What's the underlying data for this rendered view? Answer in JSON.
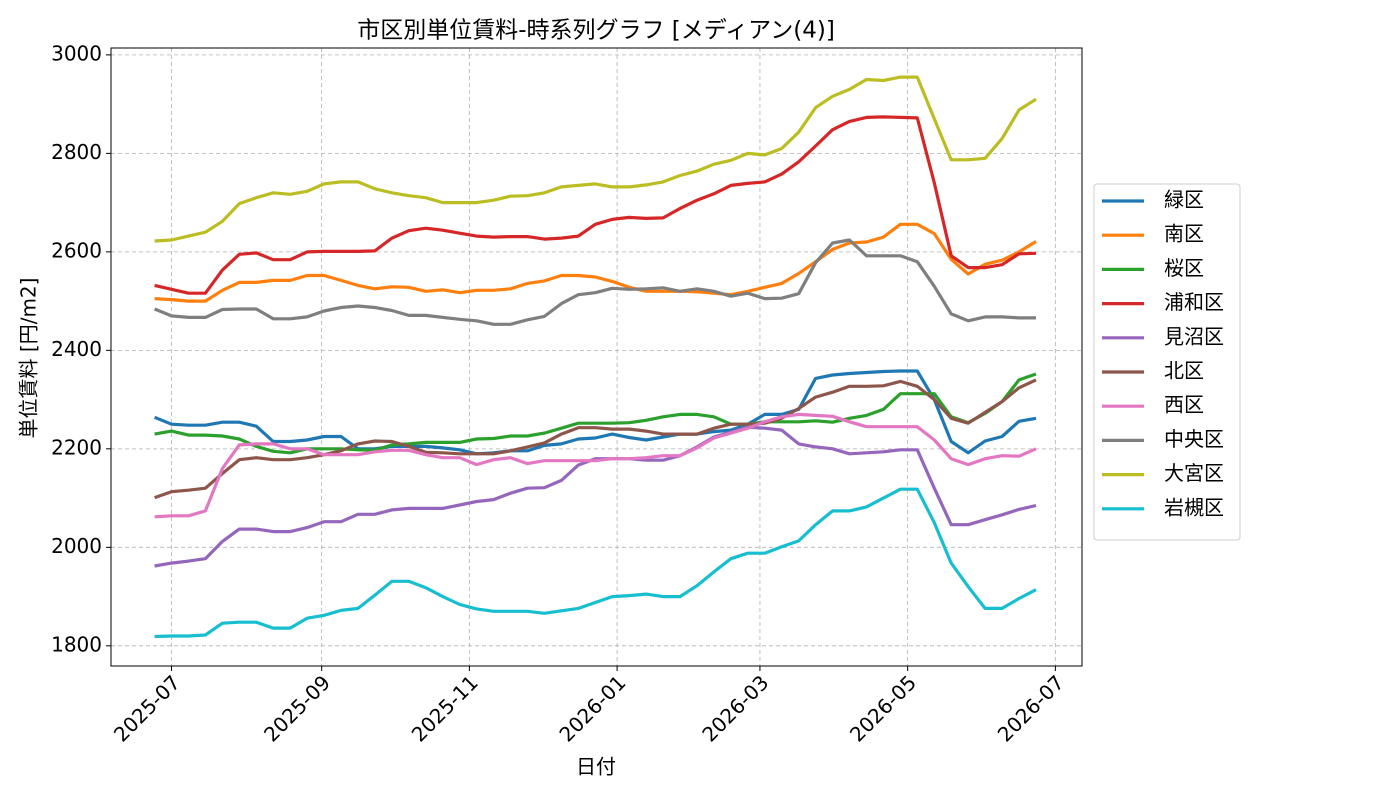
{
  "chart_data": {
    "type": "line",
    "title": "市区別単位賃料-時系列グラフ [メディアン(4)]",
    "x_label": "日付",
    "y_label": "単位賃料 [円/m2]",
    "x": [
      20263,
      20270,
      20277,
      20284,
      20291,
      20298,
      20305,
      20312,
      20319,
      20326,
      20333,
      20340,
      20347,
      20354,
      20361,
      20368,
      20375,
      20382,
      20389,
      20396,
      20403,
      20410,
      20417,
      20424,
      20431,
      20438,
      20445,
      20452,
      20459,
      20466,
      20473,
      20480,
      20487,
      20494,
      20501,
      20508,
      20515,
      20522,
      20529,
      20536,
      20543,
      20550,
      20557,
      20564,
      20571,
      20578,
      20585,
      20592,
      20599,
      20606,
      20613,
      20620,
      20627
    ],
    "xlim": [
      20245,
      20646
    ],
    "xticks": [
      {
        "value": 20270,
        "label": "2025-07"
      },
      {
        "value": 20332,
        "label": "2025-09"
      },
      {
        "value": 20393,
        "label": "2025-11"
      },
      {
        "value": 20454,
        "label": "2026-01"
      },
      {
        "value": 20513,
        "label": "2026-03"
      },
      {
        "value": 20574,
        "label": "2026-05"
      },
      {
        "value": 20635,
        "label": "2026-07"
      }
    ],
    "ylim": [
      1759,
      3014
    ],
    "yticks": [
      1800,
      2000,
      2200,
      2400,
      2600,
      2800,
      3000
    ],
    "grid": true,
    "legend": "outside-right",
    "series": [
      {
        "name": "緑区",
        "color": "#1f77b4",
        "values": [
          2264,
          2250,
          2248,
          2248,
          2254,
          2254,
          2246,
          2215,
          2215,
          2218,
          2225,
          2225,
          2200,
          2200,
          2205,
          2205,
          2205,
          2202,
          2198,
          2190,
          2192,
          2196,
          2196,
          2207,
          2210,
          2220,
          2222,
          2230,
          2223,
          2218,
          2224,
          2230,
          2230,
          2235,
          2238,
          2250,
          2270,
          2270,
          2280,
          2343,
          2350,
          2353,
          2355,
          2357,
          2358,
          2358,
          2300,
          2215,
          2192,
          2216,
          2225,
          2256,
          2262
        ]
      },
      {
        "name": "南区",
        "color": "#ff7f0e",
        "values": [
          2505,
          2503,
          2500,
          2500,
          2522,
          2538,
          2538,
          2542,
          2542,
          2552,
          2552,
          2542,
          2532,
          2525,
          2529,
          2528,
          2520,
          2523,
          2517,
          2522,
          2522,
          2525,
          2536,
          2541,
          2552,
          2552,
          2549,
          2540,
          2528,
          2520,
          2520,
          2520,
          2519,
          2516,
          2513,
          2520,
          2528,
          2536,
          2556,
          2580,
          2605,
          2618,
          2620,
          2630,
          2656,
          2656,
          2637,
          2585,
          2555,
          2575,
          2583,
          2600,
          2621
        ]
      },
      {
        "name": "桜区",
        "color": "#2ca02c",
        "values": [
          2230,
          2236,
          2228,
          2228,
          2226,
          2220,
          2205,
          2195,
          2192,
          2200,
          2200,
          2200,
          2198,
          2197,
          2208,
          2210,
          2213,
          2213,
          2213,
          2220,
          2221,
          2226,
          2226,
          2232,
          2242,
          2252,
          2252,
          2252,
          2253,
          2258,
          2265,
          2270,
          2270,
          2265,
          2250,
          2250,
          2255,
          2255,
          2255,
          2257,
          2254,
          2262,
          2268,
          2280,
          2312,
          2312,
          2312,
          2265,
          2253,
          2272,
          2296,
          2340,
          2352
        ]
      },
      {
        "name": "浦和区",
        "color": "#d62728",
        "values": [
          2532,
          2524,
          2516,
          2516,
          2563,
          2595,
          2598,
          2584,
          2584,
          2600,
          2601,
          2601,
          2601,
          2602,
          2628,
          2643,
          2648,
          2644,
          2638,
          2632,
          2630,
          2631,
          2631,
          2626,
          2628,
          2632,
          2656,
          2666,
          2670,
          2668,
          2669,
          2688,
          2705,
          2718,
          2735,
          2739,
          2742,
          2758,
          2783,
          2815,
          2848,
          2865,
          2873,
          2874,
          2873,
          2872,
          2740,
          2592,
          2568,
          2568,
          2574,
          2596,
          2597
        ]
      },
      {
        "name": "見沼区",
        "color": "#9467bd",
        "values": [
          1962,
          1968,
          1972,
          1977,
          2012,
          2037,
          2037,
          2032,
          2032,
          2040,
          2052,
          2052,
          2067,
          2067,
          2076,
          2079,
          2079,
          2079,
          2086,
          2093,
          2097,
          2110,
          2120,
          2121,
          2136,
          2167,
          2180,
          2180,
          2180,
          2177,
          2177,
          2186,
          2204,
          2224,
          2234,
          2244,
          2242,
          2238,
          2210,
          2204,
          2200,
          2190,
          2192,
          2194,
          2198,
          2198,
          2120,
          2046,
          2046,
          2056,
          2066,
          2077,
          2085
        ]
      },
      {
        "name": "北区",
        "color": "#8c564b",
        "values": [
          2101,
          2113,
          2116,
          2120,
          2150,
          2178,
          2182,
          2178,
          2178,
          2182,
          2188,
          2196,
          2210,
          2216,
          2215,
          2205,
          2193,
          2192,
          2190,
          2190,
          2190,
          2196,
          2204,
          2212,
          2230,
          2243,
          2243,
          2240,
          2240,
          2236,
          2230,
          2230,
          2230,
          2242,
          2250,
          2250,
          2252,
          2262,
          2282,
          2305,
          2315,
          2327,
          2327,
          2328,
          2337,
          2327,
          2300,
          2262,
          2252,
          2274,
          2296,
          2324,
          2340
        ]
      },
      {
        "name": "西区",
        "color": "#e377c2",
        "values": [
          2062,
          2064,
          2064,
          2074,
          2160,
          2208,
          2210,
          2210,
          2200,
          2200,
          2188,
          2188,
          2188,
          2194,
          2197,
          2197,
          2188,
          2182,
          2182,
          2168,
          2178,
          2182,
          2170,
          2176,
          2176,
          2176,
          2176,
          2180,
          2180,
          2182,
          2186,
          2186,
          2202,
          2222,
          2232,
          2242,
          2255,
          2265,
          2270,
          2268,
          2266,
          2255,
          2245,
          2245,
          2245,
          2245,
          2218,
          2180,
          2168,
          2180,
          2186,
          2185,
          2200
        ]
      },
      {
        "name": "中央区",
        "color": "#7f7f7f",
        "values": [
          2484,
          2470,
          2467,
          2467,
          2483,
          2484,
          2484,
          2464,
          2464,
          2468,
          2480,
          2487,
          2490,
          2487,
          2481,
          2471,
          2471,
          2467,
          2463,
          2460,
          2453,
          2453,
          2462,
          2469,
          2495,
          2513,
          2517,
          2526,
          2524,
          2525,
          2527,
          2520,
          2525,
          2520,
          2510,
          2516,
          2505,
          2506,
          2515,
          2578,
          2618,
          2624,
          2592,
          2592,
          2592,
          2580,
          2530,
          2474,
          2460,
          2468,
          2468,
          2466,
          2466
        ]
      },
      {
        "name": "大宮区",
        "color": "#bcbd22",
        "values": [
          2622,
          2624,
          2632,
          2640,
          2662,
          2698,
          2710,
          2720,
          2717,
          2723,
          2738,
          2742,
          2742,
          2728,
          2720,
          2714,
          2710,
          2700,
          2700,
          2700,
          2705,
          2713,
          2714,
          2720,
          2732,
          2735,
          2738,
          2732,
          2732,
          2736,
          2742,
          2755,
          2764,
          2778,
          2786,
          2800,
          2797,
          2810,
          2843,
          2893,
          2916,
          2930,
          2950,
          2948,
          2955,
          2955,
          2870,
          2787,
          2787,
          2790,
          2830,
          2888,
          2910
        ]
      },
      {
        "name": "岩槻区",
        "color": "#17becf",
        "values": [
          1819,
          1820,
          1820,
          1822,
          1846,
          1848,
          1848,
          1836,
          1836,
          1856,
          1862,
          1872,
          1876,
          1903,
          1931,
          1931,
          1918,
          1900,
          1884,
          1875,
          1870,
          1870,
          1870,
          1866,
          1871,
          1876,
          1888,
          1900,
          1902,
          1905,
          1900,
          1900,
          1922,
          1950,
          1977,
          1988,
          1988,
          2001,
          2013,
          2046,
          2074,
          2074,
          2082,
          2100,
          2118,
          2118,
          2050,
          1968,
          1920,
          1876,
          1876,
          1896,
          1914
        ]
      }
    ]
  }
}
